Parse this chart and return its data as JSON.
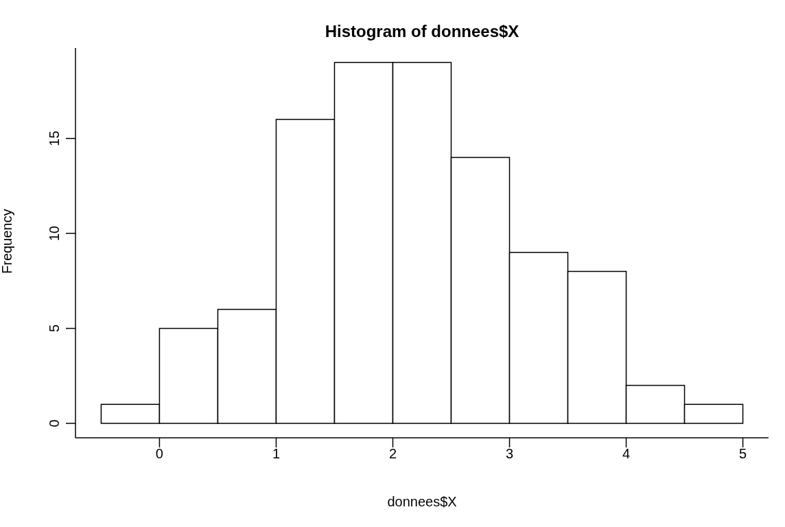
{
  "chart_data": {
    "type": "histogram",
    "title": "Histogram of donnees$X",
    "xlabel": "donnees$X",
    "ylabel": "Frequency",
    "bins": [
      -0.5,
      0,
      0.5,
      1,
      1.5,
      2,
      2.5,
      3,
      3.5,
      4,
      4.5,
      5
    ],
    "values": [
      1,
      5,
      6,
      16,
      19,
      19,
      14,
      9,
      8,
      2,
      1
    ],
    "color": "#ffffff",
    "xlim": [
      -0.72,
      5.22
    ],
    "xticks": [
      0,
      1,
      2,
      3,
      4,
      5
    ],
    "ylim": [
      -0.76,
      19.76
    ],
    "yticks": [
      0,
      5,
      10,
      15
    ],
    "grid": false,
    "legend": false
  }
}
